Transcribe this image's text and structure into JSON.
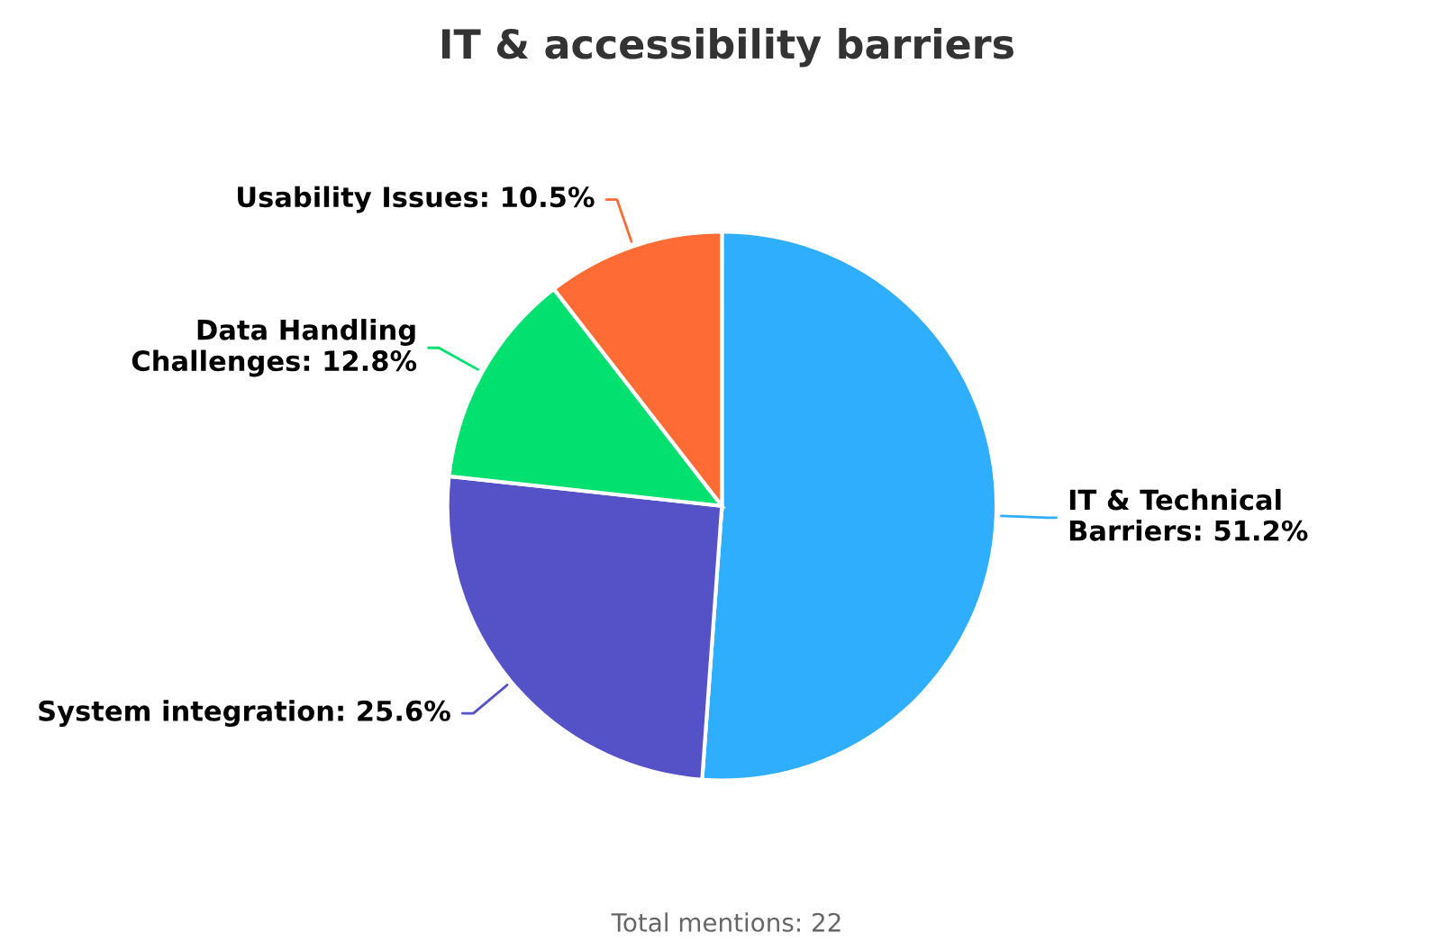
{
  "chart_data": {
    "type": "pie",
    "title": "IT & accessibility barriers",
    "categories": [
      "IT & Technical Barriers",
      "System integration",
      "Data Handling Challenges",
      "Usability Issues"
    ],
    "values": [
      51.2,
      25.6,
      12.8,
      10.5
    ],
    "value_labels": [
      "51.2%",
      "25.6%",
      "12.8%",
      "10.5%"
    ],
    "colors": [
      "#2eaefd",
      "#5552c8",
      "#02e06f",
      "#ff6b35"
    ],
    "annotations": [
      "Total mentions: 22"
    ],
    "legend": false
  }
}
